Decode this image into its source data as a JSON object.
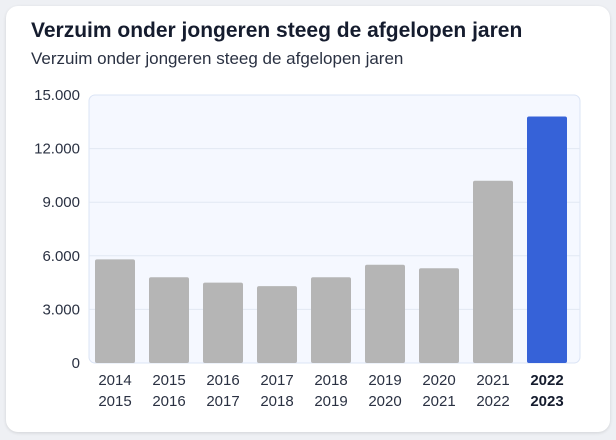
{
  "card": {
    "title": "Verzuim onder jongeren steeg de afgelopen jaren",
    "subtitle": "Verzuim onder jongeren steeg de afgelopen jaren"
  },
  "chart_data": {
    "type": "bar",
    "title": "Verzuim onder jongeren steeg de afgelopen jaren",
    "subtitle": "Verzuim onder jongeren steeg de afgelopen jaren",
    "xlabel": "",
    "ylabel": "",
    "ylim": [
      0,
      15000
    ],
    "yticks": [
      0,
      3000,
      6000,
      9000,
      12000,
      15000
    ],
    "ytick_labels": [
      "0",
      "3.000",
      "6.000",
      "9.000",
      "12.000",
      "15.000"
    ],
    "grid": true,
    "legend": "none",
    "categories": [
      [
        "2014",
        "2015"
      ],
      [
        "2015",
        "2016"
      ],
      [
        "2016",
        "2017"
      ],
      [
        "2017",
        "2018"
      ],
      [
        "2018",
        "2019"
      ],
      [
        "2019",
        "2020"
      ],
      [
        "2020",
        "2021"
      ],
      [
        "2021",
        "2022"
      ],
      [
        "2022",
        "2023"
      ]
    ],
    "values": [
      5800,
      4800,
      4500,
      4300,
      4800,
      5500,
      5300,
      10200,
      13800
    ],
    "highlight_index": 8,
    "colors": {
      "bar": "#b5b5b5",
      "highlight": "#3662d8",
      "plot_bg": "#f5f8ff",
      "plot_border": "#dbe4f5",
      "grid": "#e2e8f3"
    }
  }
}
